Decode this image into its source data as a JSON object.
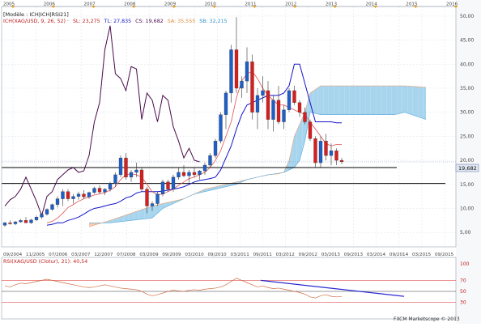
{
  "colors": {
    "bull": "#1f5fc8",
    "bear": "#d81e1e",
    "tenkan": "#e05050",
    "kijun": "#1414c8",
    "chikou": "#4a0a4a",
    "cloud_up": "#9fd0ec",
    "cloud_down": "#f3c7a8",
    "rsi": "#d06a40",
    "trend": "#2a2ad0",
    "hline": "#000000",
    "grid": "#d8e0e8",
    "bg": "#ffffff"
  },
  "header": {
    "model": "[Modèle : ICH|ICH|RSI21]",
    "ich_label": "ICH(XAG/USD, 9, 26, 52) ·",
    "sl": "SL: 23,275",
    "tl": "TL: 27,835",
    "cs": "CS: 19,682",
    "sa": "SA: 35,555",
    "sb": "SB: 32,215"
  },
  "rsi_header": "RSI(XAG/USD (Clotur), 21): 40,54",
  "price_badge": "19,682",
  "watermark": "FXCM Marketscope © 2013",
  "top_axis": [
    "2005",
    "2006",
    "2007",
    "2008",
    "2009",
    "2010",
    "2011",
    "2012",
    "2013",
    "2014",
    "2015",
    "2016"
  ],
  "chart_data": [
    {
      "type": "candlestick",
      "instrument": "XAG/USD",
      "xlabels": [
        "09/2004",
        "11/2005",
        "07/2006",
        "03/2007",
        "12/2007",
        "07/2008",
        "03/2009",
        "09/2009",
        "03/2010",
        "09/2010",
        "03/2011",
        "09/2011",
        "03/2012",
        "09/2012",
        "03/2013",
        "09/2013",
        "03/2014",
        "09/2014",
        "03/2015",
        "09/2015"
      ],
      "yticks": [
        "5,00",
        "10,00",
        "15,00",
        "20,00",
        "25,00",
        "30,00",
        "35,00",
        "40,00",
        "45,00",
        "50,00"
      ],
      "ylim": [
        2,
        52
      ],
      "last_price": 19.682,
      "horizontal_lines": [
        18.5,
        15.2
      ],
      "candles": [
        [
          6.5,
          7.2,
          6.2,
          7.0
        ],
        [
          7.0,
          7.5,
          6.6,
          6.8
        ],
        [
          6.8,
          7.4,
          6.5,
          7.2
        ],
        [
          7.2,
          7.8,
          7.0,
          7.5
        ],
        [
          7.5,
          8.2,
          7.2,
          7.0
        ],
        [
          7.0,
          7.8,
          6.8,
          7.6
        ],
        [
          7.6,
          8.5,
          7.4,
          8.2
        ],
        [
          8.2,
          9.0,
          7.8,
          8.8
        ],
        [
          8.8,
          10.0,
          8.5,
          9.8
        ],
        [
          9.8,
          11.0,
          9.5,
          10.8
        ],
        [
          10.8,
          12.5,
          10.2,
          12.0
        ],
        [
          12.0,
          14.0,
          10.5,
          13.5
        ],
        [
          13.5,
          14.0,
          11.5,
          12.0
        ],
        [
          12.0,
          13.0,
          11.0,
          12.5
        ],
        [
          12.5,
          13.5,
          11.8,
          13.0
        ],
        [
          13.0,
          13.8,
          12.0,
          12.4
        ],
        [
          12.4,
          13.5,
          12.0,
          13.3
        ],
        [
          13.3,
          14.5,
          13.0,
          14.2
        ],
        [
          14.2,
          14.8,
          13.0,
          13.4
        ],
        [
          13.4,
          14.2,
          12.8,
          14.0
        ],
        [
          14.0,
          15.5,
          13.5,
          15.2
        ],
        [
          15.2,
          17.5,
          14.5,
          17.0
        ],
        [
          17.0,
          21.0,
          16.5,
          20.5
        ],
        [
          20.5,
          21.5,
          16.0,
          16.5
        ],
        [
          16.5,
          18.0,
          15.5,
          17.5
        ],
        [
          17.5,
          19.5,
          16.5,
          18.0
        ],
        [
          18.0,
          18.5,
          13.5,
          14.0
        ],
        [
          14.0,
          14.5,
          9.0,
          10.5
        ],
        [
          10.5,
          11.5,
          9.5,
          11.0
        ],
        [
          11.0,
          13.5,
          10.5,
          13.0
        ],
        [
          13.0,
          16.0,
          12.5,
          15.5
        ],
        [
          15.5,
          16.0,
          13.5,
          14.0
        ],
        [
          14.0,
          17.0,
          13.5,
          16.5
        ],
        [
          16.5,
          18.5,
          16.0,
          17.5
        ],
        [
          17.5,
          19.0,
          16.5,
          16.8
        ],
        [
          16.8,
          18.0,
          15.0,
          17.5
        ],
        [
          17.5,
          18.5,
          16.5,
          17.0
        ],
        [
          17.0,
          18.0,
          16.0,
          17.8
        ],
        [
          17.8,
          19.5,
          17.0,
          19.0
        ],
        [
          19.0,
          21.5,
          18.5,
          21.0
        ],
        [
          21.0,
          24.5,
          20.5,
          24.0
        ],
        [
          24.0,
          30.0,
          23.5,
          29.5
        ],
        [
          29.5,
          34.5,
          26.5,
          34.0
        ],
        [
          34.0,
          44.0,
          32.0,
          43.0
        ],
        [
          43.0,
          49.8,
          34.0,
          35.0
        ],
        [
          35.0,
          37.5,
          33.0,
          36.5
        ],
        [
          36.5,
          43.5,
          34.0,
          40.5
        ],
        [
          40.5,
          42.0,
          28.5,
          30.0
        ],
        [
          30.0,
          35.0,
          26.5,
          33.5
        ],
        [
          33.5,
          37.5,
          32.0,
          34.5
        ],
        [
          34.5,
          36.5,
          26.5,
          28.5
        ],
        [
          28.5,
          33.5,
          26.0,
          32.5
        ],
        [
          32.5,
          35.5,
          27.5,
          28.0
        ],
        [
          28.0,
          31.5,
          26.5,
          30.5
        ],
        [
          30.5,
          35.0,
          30.0,
          34.5
        ],
        [
          34.5,
          35.5,
          31.5,
          32.0
        ],
        [
          32.0,
          32.5,
          29.0,
          30.0
        ],
        [
          30.0,
          31.0,
          27.5,
          28.0
        ],
        [
          28.0,
          28.5,
          24.0,
          24.5
        ],
        [
          24.5,
          25.0,
          18.5,
          19.5
        ],
        [
          19.5,
          25.0,
          18.5,
          24.0
        ],
        [
          24.0,
          25.5,
          20.0,
          21.0
        ],
        [
          21.0,
          23.5,
          19.0,
          22.0
        ],
        [
          22.0,
          22.5,
          19.0,
          20.0
        ],
        [
          20.0,
          20.5,
          19.2,
          19.7
        ]
      ],
      "ichimoku": {
        "tenkan": [
          null,
          null,
          null,
          null,
          null,
          null,
          null,
          null,
          7.0,
          7.3,
          8.0,
          9.0,
          10.2,
          10.8,
          11.5,
          12.0,
          12.4,
          12.8,
          13.0,
          13.3,
          13.8,
          14.5,
          16.0,
          17.0,
          17.2,
          17.0,
          16.5,
          15.0,
          13.5,
          12.8,
          13.0,
          13.5,
          14.0,
          14.8,
          15.5,
          16.2,
          16.5,
          17.0,
          17.5,
          18.5,
          20.0,
          22.0,
          25.0,
          28.0,
          33.0,
          36.5,
          38.0,
          38.5,
          37.0,
          35.0,
          33.5,
          32.5,
          31.5,
          31.5,
          31.0,
          30.5,
          30.0,
          29.5,
          28.0,
          26.5,
          25.0,
          23.5,
          23.0,
          23.3,
          23.3
        ],
        "kijun": [
          null,
          null,
          null,
          null,
          null,
          null,
          null,
          null,
          6.5,
          6.7,
          7.0,
          7.0,
          7.5,
          7.8,
          8.2,
          8.8,
          9.5,
          10.0,
          10.2,
          10.5,
          10.8,
          11.0,
          11.5,
          12.2,
          12.5,
          13.2,
          13.5,
          13.5,
          13.5,
          13.5,
          13.6,
          13.8,
          14.0,
          14.2,
          14.5,
          15.0,
          15.5,
          15.8,
          16.0,
          16.2,
          16.5,
          18.0,
          20.5,
          23.0,
          26.5,
          29.5,
          31.5,
          32.0,
          32.5,
          33.0,
          33.5,
          33.5,
          33.5,
          34.0,
          35.5,
          40.0,
          40.0,
          36.0,
          32.0,
          28.0,
          28.0,
          28.0,
          28.0,
          27.8,
          27.8
        ],
        "chikou": [
          [
            0,
            10.5
          ],
          [
            1,
            11.8
          ],
          [
            2,
            12.5
          ],
          [
            3,
            14.0
          ],
          [
            4,
            16.5
          ],
          [
            5,
            14.0
          ],
          [
            6,
            11.5
          ],
          [
            7,
            8.5
          ],
          [
            8,
            12.5
          ],
          [
            9,
            13.5
          ],
          [
            10,
            16.0
          ],
          [
            11,
            17.0
          ],
          [
            12,
            18.0
          ],
          [
            13,
            18.5
          ],
          [
            14,
            17.5
          ],
          [
            15,
            17.8
          ],
          [
            16,
            21.0
          ],
          [
            17,
            28.0
          ],
          [
            18,
            32.0
          ],
          [
            19,
            43.0
          ],
          [
            20,
            48.0
          ],
          [
            21,
            38.0
          ],
          [
            22,
            37.0
          ],
          [
            23,
            34.5
          ],
          [
            24,
            39.5
          ],
          [
            25,
            39.0
          ],
          [
            26,
            28.5
          ],
          [
            27,
            34.0
          ],
          [
            28,
            32.5
          ],
          [
            29,
            28.0
          ],
          [
            30,
            33.5
          ],
          [
            31,
            32.5
          ],
          [
            32,
            27.0
          ],
          [
            33,
            24.0
          ],
          [
            34,
            20.5
          ],
          [
            35,
            22.5
          ],
          [
            36,
            20.0
          ],
          [
            37,
            19.7
          ]
        ],
        "span_a": [
          [
            16,
            6.2
          ],
          [
            20,
            7.5
          ],
          [
            24,
            9.0
          ],
          [
            28,
            10.5
          ],
          [
            30,
            11.0
          ],
          [
            34,
            12.0
          ],
          [
            36,
            13.0
          ],
          [
            38,
            14.0
          ],
          [
            40,
            14.5
          ],
          [
            42,
            15.0
          ],
          [
            44,
            15.5
          ],
          [
            46,
            16.0
          ],
          [
            48,
            16.5
          ],
          [
            50,
            17.0
          ],
          [
            52,
            17.2
          ],
          [
            53,
            17.5
          ],
          [
            54,
            20.0
          ],
          [
            55,
            25.0
          ],
          [
            56,
            27.5
          ],
          [
            57,
            30.0
          ],
          [
            58,
            34.0
          ],
          [
            60,
            35.5
          ],
          [
            64,
            35.5
          ],
          [
            70,
            35.5
          ],
          [
            74,
            35.5
          ],
          [
            76,
            35.5
          ],
          [
            80,
            35.2
          ]
        ],
        "span_b": [
          [
            16,
            7.0
          ],
          [
            20,
            7.0
          ],
          [
            24,
            7.5
          ],
          [
            28,
            8.0
          ],
          [
            30,
            10.0
          ],
          [
            34,
            12.0
          ],
          [
            36,
            13.0
          ],
          [
            38,
            13.5
          ],
          [
            40,
            14.0
          ],
          [
            42,
            14.5
          ],
          [
            44,
            15.0
          ],
          [
            46,
            16.0
          ],
          [
            48,
            16.5
          ],
          [
            50,
            17.0
          ],
          [
            52,
            17.3
          ],
          [
            53,
            17.5
          ],
          [
            54,
            18.0
          ],
          [
            55,
            18.5
          ],
          [
            56,
            20.0
          ],
          [
            57,
            24.0
          ],
          [
            58,
            30.0
          ],
          [
            60,
            29.5
          ],
          [
            64,
            29.5
          ],
          [
            70,
            29.5
          ],
          [
            74,
            29.5
          ],
          [
            76,
            30.0
          ],
          [
            80,
            28.5
          ]
        ]
      }
    },
    {
      "type": "line",
      "instrument": "XAG/USD",
      "indicator": "RSI 21",
      "yticks": [
        "30",
        "50",
        "70",
        "100"
      ],
      "ylim": [
        0,
        100
      ],
      "levels": [
        30,
        50,
        70
      ],
      "last_value": 40.54,
      "values": [
        60,
        58,
        62,
        65,
        64,
        66,
        68,
        70,
        72,
        70,
        68,
        66,
        64,
        62,
        60,
        58,
        57,
        58,
        60,
        62,
        60,
        58,
        56,
        55,
        54,
        53,
        50,
        45,
        42,
        44,
        47,
        50,
        52,
        51,
        50,
        52,
        53,
        52,
        54,
        55,
        56,
        58,
        62,
        68,
        74,
        70,
        66,
        62,
        58,
        60,
        57,
        55,
        56,
        54,
        52,
        50,
        48,
        45,
        40,
        38,
        42,
        44,
        41,
        40,
        40.5
      ],
      "trendline": [
        [
          44,
          70
        ],
        [
          72,
          41
        ]
      ]
    }
  ]
}
